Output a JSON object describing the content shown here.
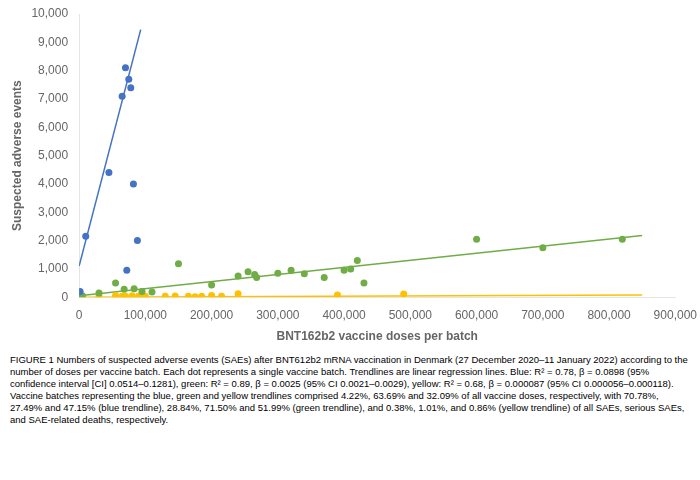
{
  "chart_data": {
    "type": "scatter",
    "xlabel": "BNT162b2 vaccine doses per batch",
    "ylabel": "Suspected adverse events",
    "caption": "FIGURE 1 Numbers of suspected adverse events (SAEs) after BNT612b2 mRNA vaccination in Denmark (27 December 2020–11 January 2022) according to the number of doses per vaccine batch. Each dot represents a single vaccine batch. Trendlines are linear regression lines. Blue: R² = 0.78, β = 0.0898 (95% confidence interval [CI] 0.0514–0.1281), green: R² = 0.89, β = 0.0025 (95% CI 0.0021–0.0029), yellow: R² = 0.68, β = 0.000087 (95% CI 0.000056–0.000118). Vaccine batches representing the blue, green and yellow trendlines comprised 4.22%, 63.69% and 32.09% of all vaccine doses, respectively, with 70.78%, 27.49% and 47.15% (blue trendline), 28.84%, 71.50% and 51.99% (green trendline), and 0.38%, 1.01%, and 0.86% (yellow trendline) of all SAEs, serious SAEs, and SAE-related deaths, respectively.",
    "xlim": [
      0,
      900000
    ],
    "ylim": [
      0,
      10000
    ],
    "xticks": [
      0,
      {
        "value": 100000,
        "label": "100,000"
      },
      {
        "value": 200000,
        "label": "200,000"
      },
      {
        "value": 300000,
        "label": "300,000"
      },
      {
        "value": 400000,
        "label": "400,000"
      },
      {
        "value": 500000,
        "label": "500,000"
      },
      {
        "value": 600000,
        "label": "600,000"
      },
      {
        "value": 700000,
        "label": "700,000"
      },
      {
        "value": 800000,
        "label": "800,000"
      },
      {
        "value": 900000,
        "label": "900,000"
      }
    ],
    "yticks": [
      0,
      {
        "value": 1000,
        "label": "1,000"
      },
      {
        "value": 2000,
        "label": "2,000"
      },
      {
        "value": 3000,
        "label": "3,000"
      },
      {
        "value": 4000,
        "label": "4,000"
      },
      {
        "value": 5000,
        "label": "5,000"
      },
      {
        "value": 6000,
        "label": "6,000"
      },
      {
        "value": 7000,
        "label": "7,000"
      },
      {
        "value": 8000,
        "label": "8,000"
      },
      {
        "value": 9000,
        "label": "9,000"
      },
      {
        "value": 10000,
        "label": "10,000"
      }
    ],
    "grid": false,
    "series": [
      {
        "type": "line",
        "line_style": "solid",
        "color": "#4472C4",
        "x": [
          0,
          93000
        ],
        "values": [
          1100,
          9450
        ]
      },
      {
        "type": "line",
        "line_style": "solid",
        "color": "#70AD47",
        "x": [
          0,
          850000
        ],
        "values": [
          50,
          2175
        ]
      },
      {
        "type": "line",
        "line_style": "solid",
        "color": "#FFC000",
        "x": [
          0,
          850000
        ],
        "values": [
          0,
          74
        ]
      },
      {
        "type": "scatter",
        "marker": "circle",
        "color": "#4472C4",
        "x": [
          10000,
          45000,
          65000,
          70000,
          75000,
          78000,
          82000,
          88000,
          72000,
          1500
        ],
        "values": [
          2150,
          4400,
          7100,
          8100,
          7700,
          7400,
          4000,
          2000,
          950,
          200
        ]
      },
      {
        "type": "scatter",
        "marker": "circle",
        "color": "#70AD47",
        "x": [
          5000,
          30000,
          55000,
          68000,
          83000,
          95000,
          110000,
          150000,
          200000,
          240000,
          255000,
          265000,
          268000,
          300000,
          320000,
          340000,
          370000,
          400000,
          410000,
          420000,
          430000,
          600000,
          700000,
          820000
        ],
        "values": [
          50,
          150,
          500,
          280,
          300,
          200,
          180,
          1180,
          430,
          750,
          900,
          800,
          700,
          850,
          950,
          830,
          700,
          950,
          1000,
          1300,
          500,
          2050,
          1750,
          2050
        ]
      },
      {
        "type": "scatter",
        "marker": "circle",
        "color": "#FFC000",
        "x": [
          30000,
          55000,
          65000,
          70000,
          80000,
          90000,
          100000,
          130000,
          145000,
          165000,
          175000,
          185000,
          200000,
          215000,
          240000,
          390000,
          490000
        ],
        "values": [
          50,
          60,
          30,
          30,
          50,
          40,
          30,
          30,
          40,
          30,
          20,
          30,
          60,
          30,
          120,
          80,
          110
        ]
      }
    ]
  }
}
